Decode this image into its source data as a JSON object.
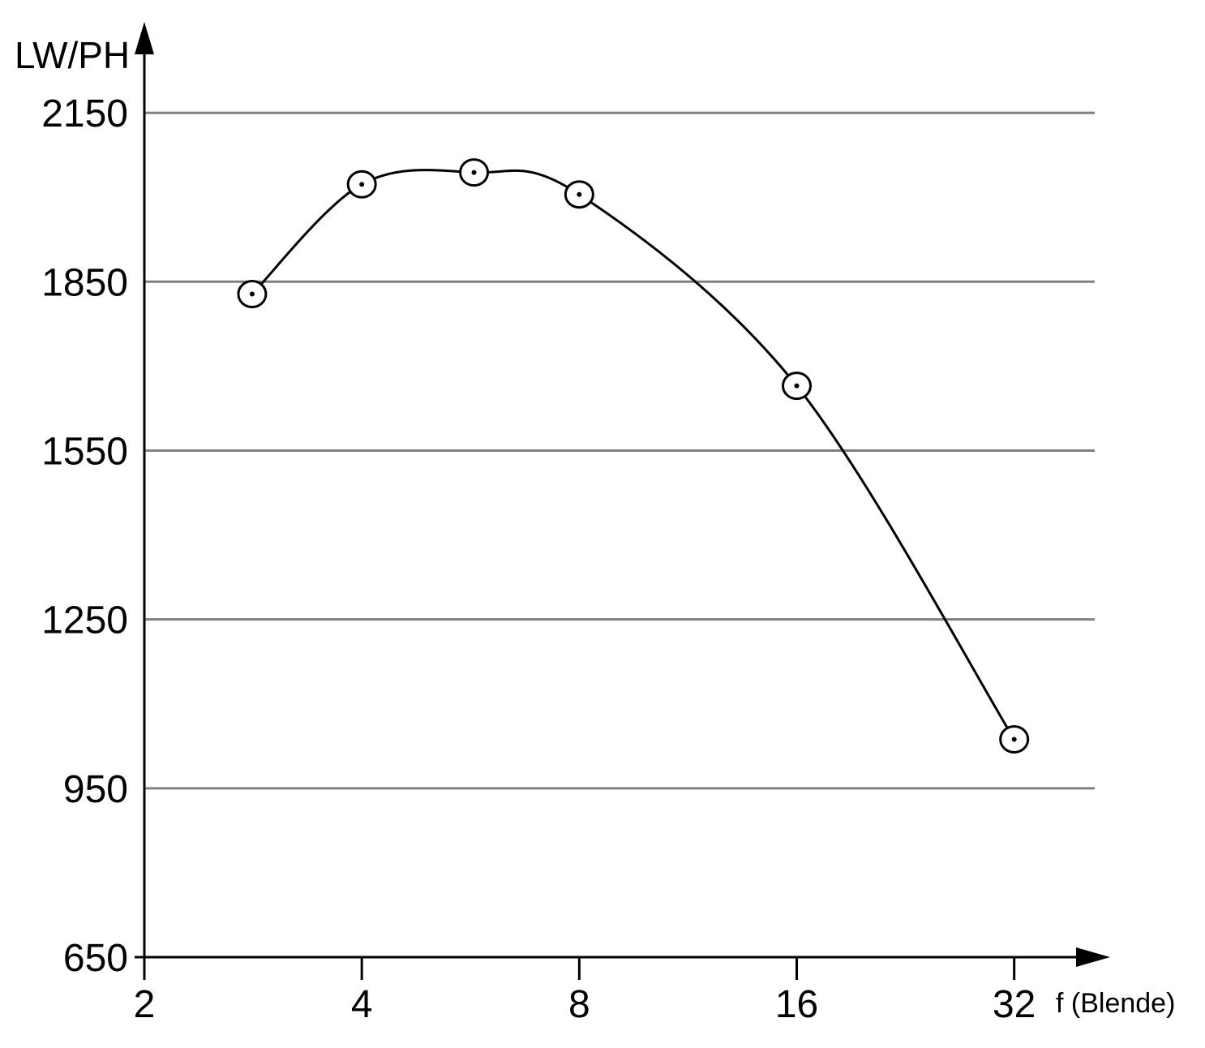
{
  "chart_data": {
    "type": "line",
    "y_label": "LW/PH",
    "x_label": "f (Blende)",
    "x": [
      2.82,
      4,
      5.72,
      8,
      16,
      32
    ],
    "series": [
      {
        "color": "#000000",
        "values": [
          1828,
          2023,
          2044,
          2005,
          1665,
          1037
        ]
      }
    ],
    "xscale": "log",
    "xlim": [
      2,
      43
    ],
    "xticks": [
      2,
      4,
      8,
      16,
      32
    ],
    "ylim": [
      650,
      2300
    ],
    "yticks": [
      650,
      950,
      1250,
      1550,
      1850,
      2150
    ],
    "grid": true
  }
}
